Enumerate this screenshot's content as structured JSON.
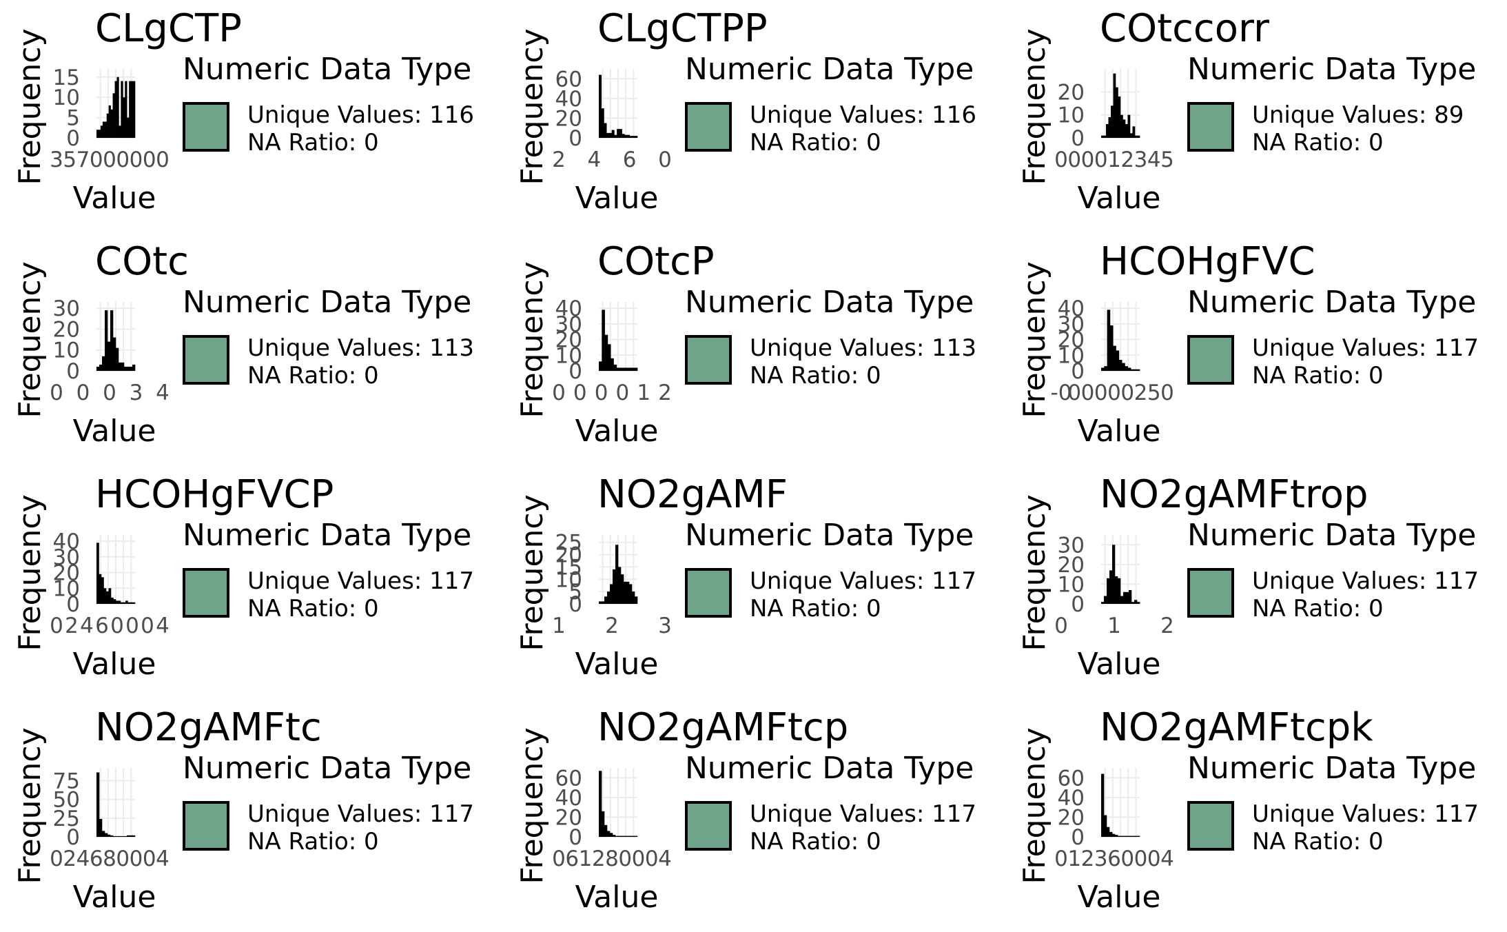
{
  "chart_data": [
    {
      "type": "bar",
      "title": "CLgCTP",
      "xlabel": "Value",
      "ylabel": "Frequency",
      "x_ticks": [
        "3",
        "5",
        "7",
        "0",
        "0",
        "0",
        "0",
        "0",
        "0"
      ],
      "y_ticks": [
        "0",
        "5",
        "10",
        "15"
      ],
      "ylim": [
        0,
        17
      ],
      "values": [
        2,
        2,
        3,
        4,
        4,
        6,
        8,
        7,
        11,
        14,
        15,
        3,
        14,
        10,
        14,
        5,
        14,
        14,
        14
      ],
      "legend": {
        "title": "Numeric Data Type",
        "unique": "Unique Values: 116",
        "na": "NA Ratio: 0"
      }
    },
    {
      "type": "bar",
      "title": "CLgCTPP",
      "xlabel": "Value",
      "ylabel": "Frequency",
      "x_ticks": [
        "2",
        "4",
        "6",
        "0"
      ],
      "y_ticks": [
        "0",
        "20",
        "40",
        "60"
      ],
      "ylim": [
        0,
        70
      ],
      "values": [
        64,
        30,
        15,
        5,
        5,
        8,
        3,
        9,
        9,
        4,
        3,
        3,
        2,
        2,
        2
      ],
      "legend": {
        "title": "Numeric Data Type",
        "unique": "Unique Values: 116",
        "na": "NA Ratio: 0"
      }
    },
    {
      "type": "bar",
      "title": "COtccorr",
      "xlabel": "Value",
      "ylabel": "Frequency",
      "x_ticks": [
        "0",
        "0",
        "0",
        "0",
        "1",
        "2",
        "3",
        "4",
        "5"
      ],
      "y_ticks": [
        "0",
        "10",
        "20"
      ],
      "ylim": [
        0,
        30
      ],
      "values": [
        1,
        1,
        6,
        9,
        14,
        28,
        22,
        18,
        10,
        8,
        6,
        10,
        2,
        5,
        1,
        1
      ],
      "legend": {
        "title": "Numeric Data Type",
        "unique": "Unique Values: 89",
        "na": "NA Ratio: 0"
      }
    },
    {
      "type": "bar",
      "title": "COtc",
      "xlabel": "Value",
      "ylabel": "Frequency",
      "x_ticks": [
        "0",
        "0",
        "0",
        "3",
        "4"
      ],
      "y_ticks": [
        "0",
        "10",
        "20",
        "30"
      ],
      "ylim": [
        0,
        33
      ],
      "values": [
        2,
        3,
        7,
        29,
        14,
        29,
        16,
        11,
        4,
        4,
        2,
        2,
        2,
        3
      ],
      "legend": {
        "title": "Numeric Data Type",
        "unique": "Unique Values: 113",
        "na": "NA Ratio: 0"
      }
    },
    {
      "type": "bar",
      "title": "COtcP",
      "xlabel": "Value",
      "ylabel": "Frequency",
      "x_ticks": [
        "0",
        "0",
        "0",
        "0",
        "1",
        "2"
      ],
      "y_ticks": [
        "0",
        "10",
        "20",
        "30",
        "40"
      ],
      "ylim": [
        0,
        44
      ],
      "values": [
        6,
        39,
        23,
        17,
        8,
        4,
        2,
        2,
        2,
        2,
        2,
        2,
        2
      ],
      "legend": {
        "title": "Numeric Data Type",
        "unique": "Unique Values: 113",
        "na": "NA Ratio: 0"
      }
    },
    {
      "type": "bar",
      "title": "HCOHgFVC",
      "xlabel": "Value",
      "ylabel": "Frequency",
      "x_ticks": [
        "-0",
        "0",
        "0",
        "0",
        "0",
        "0",
        "2",
        "5",
        "0"
      ],
      "y_ticks": [
        "0",
        "10",
        "20",
        "30",
        "40"
      ],
      "ylim": [
        0,
        44
      ],
      "values": [
        2,
        3,
        39,
        29,
        16,
        13,
        7,
        5,
        3,
        2,
        1,
        1,
        1
      ],
      "legend": {
        "title": "Numeric Data Type",
        "unique": "Unique Values: 117",
        "na": "NA Ratio: 0"
      }
    },
    {
      "type": "bar",
      "title": "HCOHgFVCP",
      "xlabel": "Value",
      "ylabel": "Frequency",
      "x_ticks": [
        "0",
        "2",
        "4",
        "6",
        "0",
        "0",
        "0",
        "4"
      ],
      "y_ticks": [
        "0",
        "10",
        "20",
        "30",
        "40"
      ],
      "ylim": [
        0,
        44
      ],
      "values": [
        39,
        19,
        17,
        10,
        8,
        10,
        4,
        3,
        2,
        2,
        1,
        1,
        2,
        1,
        1,
        1
      ],
      "legend": {
        "title": "Numeric Data Type",
        "unique": "Unique Values: 117",
        "na": "NA Ratio: 0"
      }
    },
    {
      "type": "bar",
      "title": "NO2gAMF",
      "xlabel": "Value",
      "ylabel": "Frequency",
      "x_ticks": [
        "1",
        "2",
        "3"
      ],
      "y_ticks": [
        "0",
        "5",
        "10",
        "15",
        "20",
        "25"
      ],
      "ylim": [
        0,
        28
      ],
      "values": [
        1,
        1,
        3,
        5,
        8,
        14,
        24,
        15,
        12,
        9,
        9,
        8,
        5,
        3
      ],
      "legend": {
        "title": "Numeric Data Type",
        "unique": "Unique Values: 117",
        "na": "NA Ratio: 0"
      }
    },
    {
      "type": "bar",
      "title": "NO2gAMFtrop",
      "xlabel": "Value",
      "ylabel": "Frequency",
      "x_ticks": [
        "0",
        "1",
        "2"
      ],
      "y_ticks": [
        "0",
        "10",
        "20",
        "30"
      ],
      "ylim": [
        0,
        35
      ],
      "values": [
        1,
        4,
        13,
        17,
        30,
        14,
        13,
        4,
        6,
        6,
        7,
        1,
        2,
        1
      ],
      "legend": {
        "title": "Numeric Data Type",
        "unique": "Unique Values: 117",
        "na": "NA Ratio: 0"
      }
    },
    {
      "type": "bar",
      "title": "NO2gAMFtc",
      "xlabel": "Value",
      "ylabel": "Frequency",
      "x_ticks": [
        "0",
        "2",
        "4",
        "6",
        "8",
        "0",
        "0",
        "0",
        "4"
      ],
      "y_ticks": [
        "0",
        "25",
        "50",
        "75"
      ],
      "ylim": [
        0,
        92
      ],
      "values": [
        86,
        24,
        8,
        5,
        3,
        2,
        1,
        1,
        1,
        1,
        1,
        2,
        2,
        2
      ],
      "legend": {
        "title": "Numeric Data Type",
        "unique": "Unique Values: 117",
        "na": "NA Ratio: 0"
      }
    },
    {
      "type": "bar",
      "title": "NO2gAMFtcp",
      "xlabel": "Value",
      "ylabel": "Frequency",
      "x_ticks": [
        "0",
        "6",
        "1",
        "2",
        "8",
        "0",
        "0",
        "0",
        "4"
      ],
      "y_ticks": [
        "0",
        "20",
        "40",
        "60"
      ],
      "ylim": [
        0,
        70
      ],
      "values": [
        67,
        26,
        12,
        6,
        4,
        2,
        1,
        1,
        1,
        1,
        1,
        1,
        1,
        1
      ],
      "legend": {
        "title": "Numeric Data Type",
        "unique": "Unique Values: 117",
        "na": "NA Ratio: 0"
      }
    },
    {
      "type": "bar",
      "title": "NO2gAMFtcpk",
      "xlabel": "Value",
      "ylabel": "Frequency",
      "x_ticks": [
        "0",
        "1",
        "2",
        "3",
        "6",
        "0",
        "0",
        "0",
        "4"
      ],
      "y_ticks": [
        "0",
        "20",
        "40",
        "60"
      ],
      "ylim": [
        0,
        70
      ],
      "values": [
        64,
        22,
        10,
        5,
        3,
        2,
        1,
        1,
        1,
        1,
        1,
        1,
        1,
        1
      ],
      "legend": {
        "title": "Numeric Data Type",
        "unique": "Unique Values: 117",
        "na": "NA Ratio: 0"
      }
    }
  ]
}
